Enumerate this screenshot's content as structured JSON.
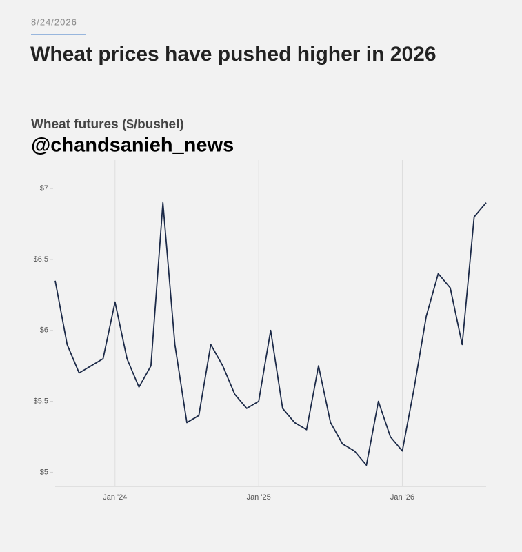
{
  "chart_data": {
    "type": "line",
    "date": "8/24/2026",
    "title": "Wheat prices have pushed higher in 2026",
    "subtitle": "Wheat futures ($/bushel)",
    "watermark": "@chandsanieh_news",
    "x": [
      "2023-08",
      "2023-09",
      "2023-10",
      "2023-11",
      "2023-12",
      "2024-01",
      "2024-02",
      "2024-03",
      "2024-04",
      "2024-05",
      "2024-06",
      "2024-07",
      "2024-08",
      "2024-09",
      "2024-10",
      "2024-11",
      "2024-12",
      "2025-01",
      "2025-02",
      "2025-03",
      "2025-04",
      "2025-05",
      "2025-06",
      "2025-07",
      "2025-08",
      "2025-09",
      "2025-10",
      "2025-11",
      "2025-12",
      "2026-01",
      "2026-02",
      "2026-03",
      "2026-04",
      "2026-05",
      "2026-06",
      "2026-07",
      "2026-08"
    ],
    "series": [
      {
        "name": "Wheat futures",
        "color": "#1c2a48",
        "values": [
          6.35,
          5.9,
          5.7,
          5.75,
          5.8,
          6.2,
          5.8,
          5.6,
          5.75,
          6.9,
          5.9,
          5.35,
          5.4,
          5.9,
          5.75,
          5.55,
          5.45,
          5.5,
          6.0,
          5.45,
          5.35,
          5.3,
          5.75,
          5.35,
          5.2,
          5.15,
          5.05,
          5.5,
          5.25,
          5.15,
          5.6,
          6.1,
          6.4,
          6.3,
          5.9,
          6.8,
          6.9
        ]
      }
    ],
    "xlim": [
      "2023-08",
      "2026-08"
    ],
    "xticks": [
      {
        "value": "2024-01",
        "label": "Jan '24"
      },
      {
        "value": "2025-01",
        "label": "Jan '25"
      },
      {
        "value": "2026-01",
        "label": "Jan '26"
      }
    ],
    "ylim": [
      4.9,
      7.2
    ],
    "yticks": [
      {
        "value": 5,
        "label": "$5"
      },
      {
        "value": 5.5,
        "label": "$5.5"
      },
      {
        "value": 6,
        "label": "$6"
      },
      {
        "value": 6.5,
        "label": "$6.5"
      },
      {
        "value": 7,
        "label": "$7"
      }
    ],
    "grid": "x"
  }
}
